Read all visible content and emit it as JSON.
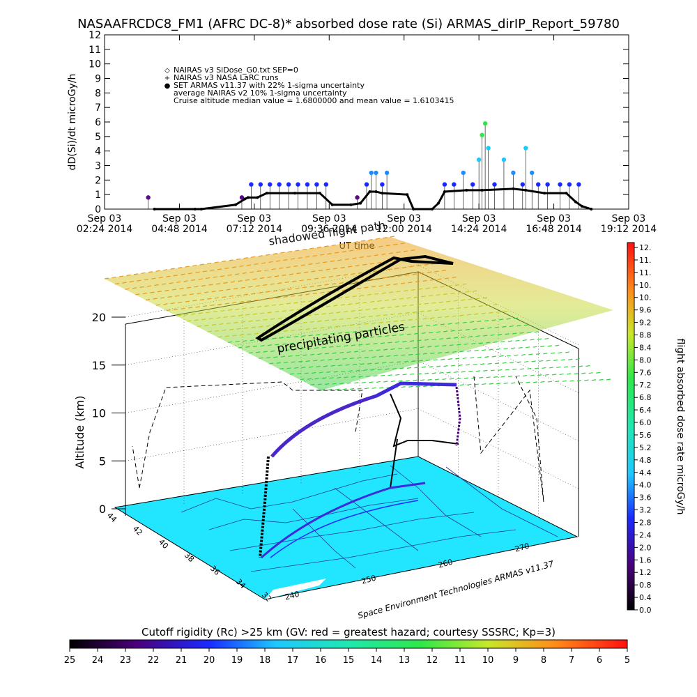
{
  "title": "NASAAFRCDC8_FM1 (AFRC DC-8)* absorbed dose rate (Si) ARMAS_dirIP_Report_59780",
  "chart_data": [
    {
      "type": "scatter",
      "ylabel": "dD(Si)/dt microGy/h",
      "xlabel": "UT time",
      "ylim": [
        0,
        12
      ],
      "yticks": [
        "0",
        "1",
        "2",
        "3",
        "4",
        "5",
        "6",
        "7",
        "8",
        "9",
        "10",
        "11",
        "12"
      ],
      "xticks": [
        {
          "top": "Sep 03",
          "bottom": "02:24 2014"
        },
        {
          "top": "Sep 03",
          "bottom": "04:48 2014"
        },
        {
          "top": "Sep 03",
          "bottom": "07:12 2014"
        },
        {
          "top": "Sep 03",
          "bottom": "09:36 2014"
        },
        {
          "top": "Sep 03",
          "bottom": "12:00 2014"
        },
        {
          "top": "Sep 03",
          "bottom": "14:24 2014"
        },
        {
          "top": "Sep 03",
          "bottom": "16:48 2014"
        },
        {
          "top": "Sep 03",
          "bottom": "19:12 2014"
        }
      ],
      "legend": [
        {
          "marker": "◇",
          "text": "NAIRAS v3 SiDose_G0.txt SEP=0",
          "color": "#000000"
        },
        {
          "marker": "+",
          "text": "NAIRAS v3 NASA LaRC runs",
          "color": "#000000"
        },
        {
          "marker": "●",
          "text": "SET ARMAS v11.37 with 22% 1-sigma uncertainty",
          "color": "#1a3cff"
        },
        {
          "marker": "",
          "text": "average NAIRAS v2 10% 1-sigma uncertainty",
          "color": "#000000"
        },
        {
          "marker": "",
          "text": "Cruise altitude median value = 1.6800000 and mean value = 1.6103415",
          "color": "#000000"
        }
      ],
      "annotations": [
        "shadowed flight path"
      ],
      "model_series": {
        "name": "NAIRAS",
        "x": [
          4.0,
          5.3,
          5.5,
          6.6,
          6.9,
          7.0,
          7.3,
          7.6,
          8.5,
          9.3,
          9.7,
          10.3,
          10.6,
          10.9,
          11.1,
          11.3,
          12.1,
          12.3,
          12.9,
          13.1,
          13.3,
          14.0,
          14.5,
          15.5,
          15.9,
          16.5,
          17.2,
          17.5,
          17.7,
          18.0
        ],
        "y": [
          0,
          0,
          0,
          0.3,
          0.7,
          0.8,
          0.8,
          1.1,
          1.1,
          1.1,
          0.3,
          0.3,
          0.4,
          1.2,
          1.2,
          1.1,
          1.0,
          0,
          0,
          0.4,
          1.2,
          1.3,
          1.3,
          1.4,
          1.3,
          1.1,
          1.1,
          0.5,
          0.2,
          0
        ]
      },
      "armas_series": {
        "name": "SET ARMAS v11.37",
        "x": [
          3.8,
          6.8,
          7.1,
          7.4,
          7.7,
          8.0,
          8.3,
          8.6,
          8.9,
          9.2,
          9.5,
          10.5,
          10.8,
          10.95,
          11.1,
          11.3,
          11.45,
          13.3,
          13.6,
          13.9,
          14.2,
          14.4,
          14.5,
          14.6,
          14.7,
          14.9,
          15.2,
          15.5,
          15.8,
          15.9,
          16.1,
          16.3,
          16.6,
          17.0,
          17.3,
          17.6
        ],
        "y": [
          0.8,
          0.8,
          1.7,
          1.7,
          1.7,
          1.7,
          1.7,
          1.7,
          1.7,
          1.7,
          1.7,
          0.8,
          1.7,
          2.5,
          2.5,
          1.7,
          2.5,
          1.7,
          1.7,
          2.5,
          1.7,
          3.4,
          5.1,
          5.9,
          4.2,
          1.7,
          3.4,
          2.5,
          1.7,
          4.2,
          2.5,
          1.7,
          1.7,
          1.7,
          1.7,
          1.7
        ]
      }
    },
    {
      "type": "scatter",
      "name": "3d",
      "zlabel": "Altitude (km)",
      "zticks": [
        "0",
        "5",
        "10",
        "15",
        "20"
      ],
      "lat_ticks": [
        "44",
        "42",
        "40",
        "38",
        "36",
        "34",
        "32"
      ],
      "lon_ticks": [
        "240",
        "250",
        "260",
        "270"
      ],
      "annotations": [
        "precipitating particles"
      ],
      "credit": "Space Environment Technologies ARMAS v11.37"
    }
  ],
  "colorbar_right": {
    "label": "flight absorbed dose rate microGy/h",
    "ticks": [
      "12.",
      "11.",
      "11.",
      "10.",
      "10.",
      "9.6",
      "9.2",
      "8.8",
      "8.4",
      "8.0",
      "7.6",
      "7.2",
      "6.8",
      "6.4",
      "6.0",
      "5.6",
      "5.2",
      "4.8",
      "4.4",
      "4.0",
      "3.6",
      "3.2",
      "2.8",
      "2.4",
      "2.0",
      "1.6",
      "1.2",
      "0.8",
      "0.4",
      "0.0"
    ]
  },
  "colorbar_bottom": {
    "label": "Cutoff rigidity (Rc) >25 km (GV: red = greatest hazard; courtesy SSSRC; Kp=3)",
    "ticks": [
      "25",
      "24",
      "23",
      "22",
      "21",
      "20",
      "19",
      "18",
      "17",
      "16",
      "15",
      "14",
      "13",
      "12",
      "11",
      "10",
      "9",
      "8",
      "7",
      "6",
      "5"
    ]
  },
  "colors": {
    "ground": "#22e5ff",
    "flight_track": "#000000",
    "armas": "#1a3cff"
  }
}
